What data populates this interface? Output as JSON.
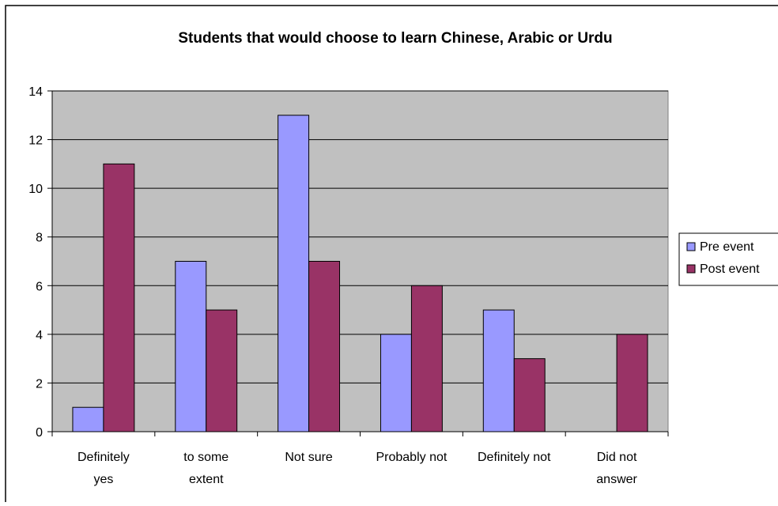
{
  "chart_data": {
    "type": "bar",
    "title": "Students that would choose to learn Chinese, Arabic or Urdu",
    "categories": [
      [
        "Definitely",
        "yes"
      ],
      [
        "to some",
        "extent"
      ],
      [
        "Not sure"
      ],
      [
        "Probably not"
      ],
      [
        "Definitely not"
      ],
      [
        "Did not",
        "answer"
      ]
    ],
    "series": [
      {
        "name": "Pre event",
        "values": [
          1,
          7,
          13,
          4,
          5,
          0
        ],
        "color": "#9999ff"
      },
      {
        "name": "Post event",
        "values": [
          11,
          5,
          7,
          6,
          3,
          4
        ],
        "color": "#993366"
      }
    ],
    "ylim": [
      0,
      14
    ],
    "yticks": [
      "0",
      "2",
      "4",
      "6",
      "8",
      "10",
      "12",
      "14"
    ],
    "grid": true,
    "plot_background": "#c0c0c0",
    "legend_position": "right"
  }
}
